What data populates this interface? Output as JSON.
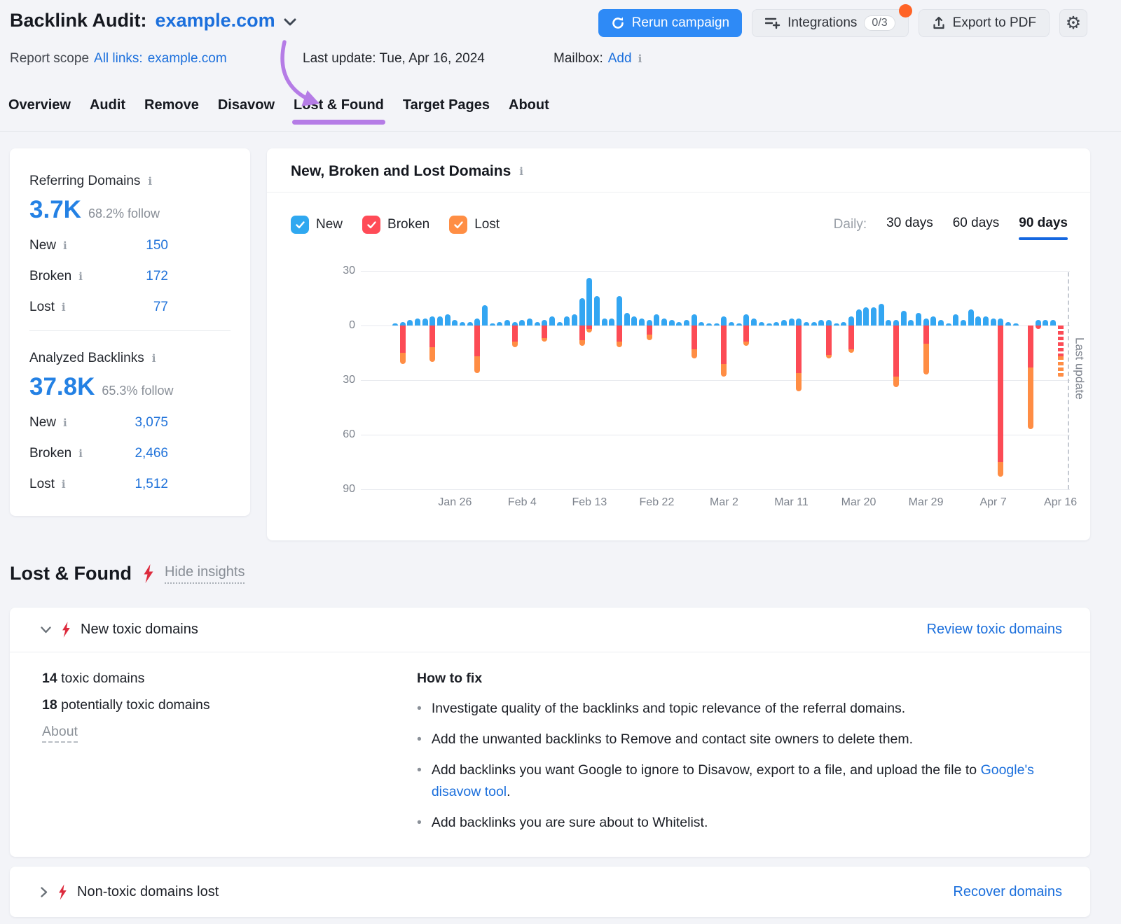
{
  "header": {
    "title": "Backlink Audit:",
    "domain": "example.com",
    "buttons": {
      "rerun": "Rerun campaign",
      "integrations": "Integrations",
      "integrations_badge": "0/3",
      "export_pdf": "Export to PDF"
    },
    "meta": {
      "report_scope_label": "Report scope",
      "report_scope_links": "All links:",
      "report_scope_domain": "example.com",
      "last_update": "Last update: Tue, Apr 16, 2024",
      "mailbox_label": "Mailbox:",
      "mailbox_add": "Add"
    }
  },
  "icons": {
    "gear": "⚙"
  },
  "tabs": [
    {
      "label": "Overview"
    },
    {
      "label": "Audit"
    },
    {
      "label": "Remove"
    },
    {
      "label": "Disavow"
    },
    {
      "label": "Lost & Found"
    },
    {
      "label": "Target Pages"
    },
    {
      "label": "About"
    }
  ],
  "active_tab": 4,
  "sidebar": {
    "referring": {
      "title": "Referring Domains",
      "value": "3.7K",
      "follow": "68.2% follow",
      "rows": [
        {
          "label": "New",
          "value": "150"
        },
        {
          "label": "Broken",
          "value": "172"
        },
        {
          "label": "Lost",
          "value": "77"
        }
      ]
    },
    "analyzed": {
      "title": "Analyzed Backlinks",
      "value": "37.8K",
      "follow": "65.3% follow",
      "rows": [
        {
          "label": "New",
          "value": "3,075"
        },
        {
          "label": "Broken",
          "value": "2,466"
        },
        {
          "label": "Lost",
          "value": "1,512"
        }
      ]
    }
  },
  "chart": {
    "title": "New, Broken and Lost Domains",
    "daily_label": "Daily:",
    "periods": [
      {
        "label": "30 days"
      },
      {
        "label": "60 days"
      },
      {
        "label": "90 days"
      }
    ],
    "active_period": 2,
    "legend": [
      {
        "label": "New",
        "color": "#2fa8f0",
        "checked": true
      },
      {
        "label": "Broken",
        "color": "#ff4b57",
        "checked": true
      },
      {
        "label": "Lost",
        "color": "#ff8e44",
        "checked": true
      }
    ]
  },
  "chart_data": {
    "type": "bar",
    "stacked": true,
    "title": "New, Broken and Lost Domains",
    "ylim": [
      -90,
      30
    ],
    "grid": true,
    "y_gridline_values": [
      30,
      0,
      -30,
      -60,
      -90
    ],
    "y_tick_labels": [
      "30",
      "0",
      "30",
      "60",
      "90"
    ],
    "x_ticks": [
      {
        "label": "Jan 26",
        "day": 8
      },
      {
        "label": "Feb 4",
        "day": 17
      },
      {
        "label": "Feb 13",
        "day": 26
      },
      {
        "label": "Feb 22",
        "day": 35
      },
      {
        "label": "Mar 2",
        "day": 44
      },
      {
        "label": "Mar 11",
        "day": 53
      },
      {
        "label": "Mar 20",
        "day": 62
      },
      {
        "label": "Mar 29",
        "day": 71
      },
      {
        "label": "Apr 7",
        "day": 80
      },
      {
        "label": "Apr 16",
        "day": 89
      }
    ],
    "series": [
      {
        "name": "New",
        "color": "#2fa8f0",
        "direction": "up",
        "values": [
          1,
          2,
          3,
          4,
          4,
          5,
          5,
          6,
          3,
          2,
          2,
          4,
          11,
          1,
          2,
          3,
          2,
          3,
          4,
          2,
          3,
          5,
          2,
          5,
          6,
          15,
          26,
          16,
          4,
          4,
          16,
          7,
          5,
          4,
          3,
          6,
          4,
          3,
          2,
          3,
          6,
          2,
          1,
          1,
          5,
          2,
          1,
          6,
          4,
          2,
          1,
          2,
          3,
          4,
          4,
          2,
          2,
          3,
          3,
          1,
          2,
          5,
          9,
          10,
          10,
          12,
          3,
          3,
          8,
          3,
          7,
          4,
          5,
          3,
          1,
          6,
          3,
          9,
          5,
          5,
          4,
          4,
          2,
          1,
          0,
          0,
          3,
          3,
          3,
          0
        ]
      },
      {
        "name": "Broken",
        "color": "#ff4b57",
        "direction": "down",
        "values": [
          0,
          15,
          0,
          0,
          0,
          12,
          0,
          0,
          0,
          0,
          0,
          17,
          0,
          0,
          0,
          0,
          9,
          0,
          0,
          0,
          7,
          0,
          0,
          0,
          0,
          8,
          2,
          0,
          0,
          0,
          9,
          0,
          0,
          0,
          5,
          0,
          0,
          0,
          0,
          0,
          13,
          0,
          0,
          0,
          21,
          0,
          0,
          9,
          0,
          0,
          0,
          0,
          0,
          0,
          26,
          0,
          0,
          0,
          16,
          0,
          0,
          13,
          0,
          0,
          0,
          0,
          0,
          28,
          0,
          0,
          0,
          10,
          0,
          0,
          0,
          0,
          0,
          0,
          0,
          0,
          0,
          75,
          0,
          0,
          0,
          23,
          2,
          0,
          0,
          17
        ]
      },
      {
        "name": "Lost",
        "color": "#ff8e44",
        "direction": "down",
        "values": [
          0,
          6,
          0,
          0,
          0,
          8,
          0,
          0,
          0,
          0,
          0,
          9,
          0,
          0,
          0,
          0,
          3,
          0,
          0,
          0,
          2,
          0,
          0,
          0,
          0,
          3,
          2,
          0,
          0,
          0,
          3,
          0,
          0,
          0,
          3,
          0,
          0,
          0,
          0,
          0,
          5,
          0,
          0,
          0,
          7,
          0,
          0,
          2,
          0,
          0,
          0,
          0,
          0,
          0,
          10,
          0,
          0,
          0,
          2,
          0,
          0,
          2,
          0,
          0,
          0,
          0,
          0,
          6,
          0,
          0,
          0,
          17,
          0,
          0,
          0,
          0,
          0,
          0,
          0,
          0,
          0,
          8,
          0,
          0,
          0,
          34,
          0,
          0,
          0,
          12
        ]
      }
    ],
    "last_day_partial": true,
    "last_update_label": "Last update"
  },
  "lost_found": {
    "title": "Lost & Found",
    "hide_insights": "Hide insights"
  },
  "insights": {
    "toxic": {
      "title": "New toxic domains",
      "action": "Review toxic domains",
      "stat1_value": "14",
      "stat1_label": " toxic domains",
      "stat2_value": "18",
      "stat2_label": " potentially toxic domains",
      "about": "About",
      "fix": {
        "title": "How to fix",
        "b1": "Investigate quality of the backlinks and topic relevance of the referral domains.",
        "b2": "Add the unwanted backlinks to Remove and contact site owners to delete them.",
        "b3_pre": "Add backlinks you want Google to ignore to Disavow, export to a file, and upload the file to ",
        "b3_link": "Google's disavow tool",
        "b3_post": ".",
        "b4": "Add backlinks you are sure about to Whitelist."
      }
    },
    "nontoxic": {
      "title": "Non-toxic domains lost",
      "action": "Recover domains"
    }
  }
}
